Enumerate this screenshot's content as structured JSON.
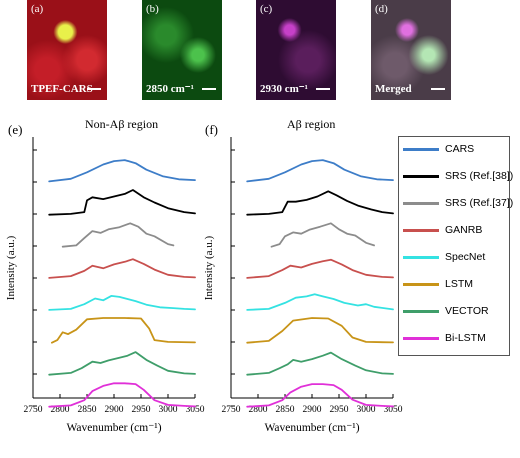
{
  "images": [
    {
      "tag": "(a)",
      "caption": "TPEF-CARS",
      "bg": "#b3121a"
    },
    {
      "tag": "(b)",
      "caption": "2850 cm⁻¹",
      "bg": "#0e5a12"
    },
    {
      "tag": "(c)",
      "caption": "2930 cm⁻¹",
      "bg": "#3d1140"
    },
    {
      "tag": "(d)",
      "caption": "Merged",
      "bg": "#5a4a55"
    }
  ],
  "panels": [
    {
      "tag": "(e)",
      "title": "Non-Aβ region"
    },
    {
      "tag": "(f)",
      "title": "Aβ region"
    }
  ],
  "axis": {
    "xlabel": "Wavenumber (cm⁻¹)",
    "ylabel": "Intensity (a.u.)",
    "xticks": [
      "2750",
      "2800",
      "2850",
      "2900",
      "2950",
      "3000",
      "3050"
    ],
    "xlim": [
      2750,
      3050
    ]
  },
  "legend": [
    {
      "label": "CARS",
      "color": "#3d7dc8"
    },
    {
      "label": "SRS (Ref.[38])",
      "color": "#000000"
    },
    {
      "label": "SRS (Ref.[37])",
      "color": "#8c8c8c"
    },
    {
      "label": "GANRB",
      "color": "#c8504e"
    },
    {
      "label": "SpecNet",
      "color": "#34e2e2"
    },
    {
      "label": "LSTM",
      "color": "#c89418"
    },
    {
      "label": "VECTOR",
      "color": "#3f9e6a"
    },
    {
      "label": "Bi-LSTM",
      "color": "#e030d8"
    }
  ],
  "chart_data": {
    "type": "line",
    "xlabel": "Wavenumber (cm⁻¹)",
    "ylabel": "Intensity (a.u.)",
    "xlim": [
      2750,
      3050
    ],
    "charts": [
      {
        "title": "Non-Aβ region",
        "series": [
          {
            "name": "CARS",
            "color": "#3d7dc8",
            "points": [
              [
                2780,
                0.1
              ],
              [
                2820,
                0.2
              ],
              [
                2850,
                0.45
              ],
              [
                2880,
                0.75
              ],
              [
                2900,
                0.88
              ],
              [
                2920,
                0.92
              ],
              [
                2940,
                0.8
              ],
              [
                2960,
                0.55
              ],
              [
                2990,
                0.3
              ],
              [
                3020,
                0.18
              ],
              [
                3050,
                0.15
              ]
            ]
          },
          {
            "name": "SRS (Ref.[38])",
            "color": "#000000",
            "points": [
              [
                2780,
                0.05
              ],
              [
                2820,
                0.08
              ],
              [
                2845,
                0.15
              ],
              [
                2850,
                0.6
              ],
              [
                2860,
                0.72
              ],
              [
                2880,
                0.65
              ],
              [
                2900,
                0.75
              ],
              [
                2920,
                0.85
              ],
              [
                2935,
                1.0
              ],
              [
                2955,
                0.72
              ],
              [
                2975,
                0.52
              ],
              [
                3000,
                0.3
              ],
              [
                3030,
                0.15
              ],
              [
                3050,
                0.1
              ]
            ]
          },
          {
            "name": "SRS (Ref.[37])",
            "color": "#8c8c8c",
            "points": [
              [
                2805,
                0.05
              ],
              [
                2830,
                0.1
              ],
              [
                2845,
                0.38
              ],
              [
                2860,
                0.65
              ],
              [
                2875,
                0.58
              ],
              [
                2890,
                0.72
              ],
              [
                2910,
                0.8
              ],
              [
                2930,
                0.95
              ],
              [
                2945,
                0.82
              ],
              [
                2960,
                0.55
              ],
              [
                2975,
                0.45
              ],
              [
                3000,
                0.15
              ],
              [
                3010,
                0.1
              ]
            ]
          },
          {
            "name": "GANRB",
            "color": "#c8504e",
            "points": [
              [
                2780,
                0.08
              ],
              [
                2820,
                0.15
              ],
              [
                2845,
                0.35
              ],
              [
                2860,
                0.55
              ],
              [
                2880,
                0.45
              ],
              [
                2900,
                0.6
              ],
              [
                2920,
                0.7
              ],
              [
                2935,
                0.8
              ],
              [
                2955,
                0.62
              ],
              [
                2975,
                0.4
              ],
              [
                3000,
                0.2
              ],
              [
                3030,
                0.12
              ],
              [
                3050,
                0.1
              ]
            ]
          },
          {
            "name": "SpecNet",
            "color": "#34e2e2",
            "points": [
              [
                2780,
                0.08
              ],
              [
                2820,
                0.12
              ],
              [
                2845,
                0.3
              ],
              [
                2865,
                0.52
              ],
              [
                2880,
                0.45
              ],
              [
                2895,
                0.62
              ],
              [
                2910,
                0.58
              ],
              [
                2925,
                0.5
              ],
              [
                2940,
                0.42
              ],
              [
                2960,
                0.28
              ],
              [
                2985,
                0.18
              ],
              [
                3010,
                0.15
              ],
              [
                3030,
                0.12
              ],
              [
                3050,
                0.1
              ]
            ]
          },
          {
            "name": "LSTM",
            "color": "#c89418",
            "points": [
              [
                2785,
                0.05
              ],
              [
                2795,
                0.15
              ],
              [
                2805,
                0.45
              ],
              [
                2815,
                0.38
              ],
              [
                2830,
                0.55
              ],
              [
                2850,
                0.95
              ],
              [
                2880,
                1.0
              ],
              [
                2920,
                1.0
              ],
              [
                2950,
                0.98
              ],
              [
                2965,
                0.6
              ],
              [
                2975,
                0.15
              ],
              [
                3000,
                0.08
              ],
              [
                3050,
                0.06
              ]
            ]
          },
          {
            "name": "VECTOR",
            "color": "#3f9e6a",
            "points": [
              [
                2780,
                0.05
              ],
              [
                2820,
                0.12
              ],
              [
                2840,
                0.3
              ],
              [
                2860,
                0.55
              ],
              [
                2875,
                0.5
              ],
              [
                2890,
                0.6
              ],
              [
                2910,
                0.7
              ],
              [
                2925,
                0.78
              ],
              [
                2940,
                0.92
              ],
              [
                2960,
                0.62
              ],
              [
                2980,
                0.4
              ],
              [
                3000,
                0.2
              ],
              [
                3030,
                0.1
              ],
              [
                3050,
                0.08
              ]
            ]
          },
          {
            "name": "Bi-LSTM",
            "color": "#e030d8",
            "points": [
              [
                2780,
                0.05
              ],
              [
                2820,
                0.1
              ],
              [
                2845,
                0.3
              ],
              [
                2860,
                0.65
              ],
              [
                2880,
                0.85
              ],
              [
                2900,
                0.95
              ],
              [
                2920,
                0.95
              ],
              [
                2940,
                0.92
              ],
              [
                2955,
                0.7
              ],
              [
                2975,
                0.3
              ],
              [
                3000,
                0.12
              ],
              [
                3030,
                0.08
              ],
              [
                3050,
                0.06
              ]
            ]
          }
        ]
      },
      {
        "title": "Aβ region",
        "series": [
          {
            "name": "CARS",
            "color": "#3d7dc8",
            "points": [
              [
                2780,
                0.1
              ],
              [
                2820,
                0.2
              ],
              [
                2850,
                0.45
              ],
              [
                2880,
                0.75
              ],
              [
                2900,
                0.88
              ],
              [
                2920,
                0.92
              ],
              [
                2940,
                0.8
              ],
              [
                2960,
                0.55
              ],
              [
                2990,
                0.3
              ],
              [
                3020,
                0.18
              ],
              [
                3050,
                0.15
              ]
            ]
          },
          {
            "name": "SRS (Ref.[38])",
            "color": "#000000",
            "points": [
              [
                2780,
                0.05
              ],
              [
                2820,
                0.08
              ],
              [
                2845,
                0.15
              ],
              [
                2855,
                0.55
              ],
              [
                2870,
                0.55
              ],
              [
                2890,
                0.62
              ],
              [
                2910,
                0.75
              ],
              [
                2930,
                0.95
              ],
              [
                2945,
                0.8
              ],
              [
                2965,
                0.58
              ],
              [
                2985,
                0.4
              ],
              [
                3010,
                0.25
              ],
              [
                3030,
                0.15
              ],
              [
                3050,
                0.1
              ]
            ]
          },
          {
            "name": "SRS (Ref.[37])",
            "color": "#8c8c8c",
            "points": [
              [
                2825,
                0.05
              ],
              [
                2840,
                0.15
              ],
              [
                2850,
                0.45
              ],
              [
                2865,
                0.6
              ],
              [
                2880,
                0.55
              ],
              [
                2895,
                0.7
              ],
              [
                2915,
                0.82
              ],
              [
                2935,
                0.95
              ],
              [
                2950,
                0.72
              ],
              [
                2965,
                0.55
              ],
              [
                2980,
                0.48
              ],
              [
                3000,
                0.2
              ],
              [
                3015,
                0.1
              ]
            ]
          },
          {
            "name": "GANRB",
            "color": "#c8504e",
            "points": [
              [
                2780,
                0.08
              ],
              [
                2820,
                0.15
              ],
              [
                2845,
                0.38
              ],
              [
                2860,
                0.55
              ],
              [
                2880,
                0.48
              ],
              [
                2900,
                0.62
              ],
              [
                2920,
                0.72
              ],
              [
                2935,
                0.78
              ],
              [
                2955,
                0.6
              ],
              [
                2975,
                0.38
              ],
              [
                3000,
                0.2
              ],
              [
                3030,
                0.12
              ],
              [
                3050,
                0.1
              ]
            ]
          },
          {
            "name": "SpecNet",
            "color": "#34e2e2",
            "points": [
              [
                2780,
                0.08
              ],
              [
                2820,
                0.12
              ],
              [
                2850,
                0.35
              ],
              [
                2870,
                0.55
              ],
              [
                2890,
                0.6
              ],
              [
                2905,
                0.68
              ],
              [
                2920,
                0.6
              ],
              [
                2940,
                0.5
              ],
              [
                2960,
                0.35
              ],
              [
                2985,
                0.25
              ],
              [
                3000,
                0.3
              ],
              [
                3015,
                0.2
              ],
              [
                3050,
                0.1
              ]
            ]
          },
          {
            "name": "LSTM",
            "color": "#c89418",
            "points": [
              [
                2780,
                0.05
              ],
              [
                2820,
                0.12
              ],
              [
                2845,
                0.5
              ],
              [
                2865,
                0.9
              ],
              [
                2900,
                1.0
              ],
              [
                2930,
                0.98
              ],
              [
                2955,
                0.7
              ],
              [
                2975,
                0.25
              ],
              [
                3000,
                0.08
              ],
              [
                3050,
                0.06
              ]
            ]
          },
          {
            "name": "VECTOR",
            "color": "#3f9e6a",
            "points": [
              [
                2780,
                0.05
              ],
              [
                2820,
                0.12
              ],
              [
                2840,
                0.3
              ],
              [
                2855,
                0.45
              ],
              [
                2865,
                0.62
              ],
              [
                2880,
                0.55
              ],
              [
                2900,
                0.65
              ],
              [
                2920,
                0.78
              ],
              [
                2935,
                0.9
              ],
              [
                2955,
                0.65
              ],
              [
                2980,
                0.4
              ],
              [
                3000,
                0.22
              ],
              [
                3030,
                0.1
              ],
              [
                3050,
                0.08
              ]
            ]
          },
          {
            "name": "Bi-LSTM",
            "color": "#e030d8",
            "points": [
              [
                2780,
                0.05
              ],
              [
                2820,
                0.1
              ],
              [
                2845,
                0.3
              ],
              [
                2860,
                0.6
              ],
              [
                2880,
                0.82
              ],
              [
                2900,
                0.92
              ],
              [
                2920,
                0.92
              ],
              [
                2940,
                0.88
              ],
              [
                2955,
                0.7
              ],
              [
                2975,
                0.32
              ],
              [
                3000,
                0.12
              ],
              [
                3030,
                0.08
              ],
              [
                3050,
                0.06
              ]
            ]
          }
        ]
      }
    ]
  }
}
